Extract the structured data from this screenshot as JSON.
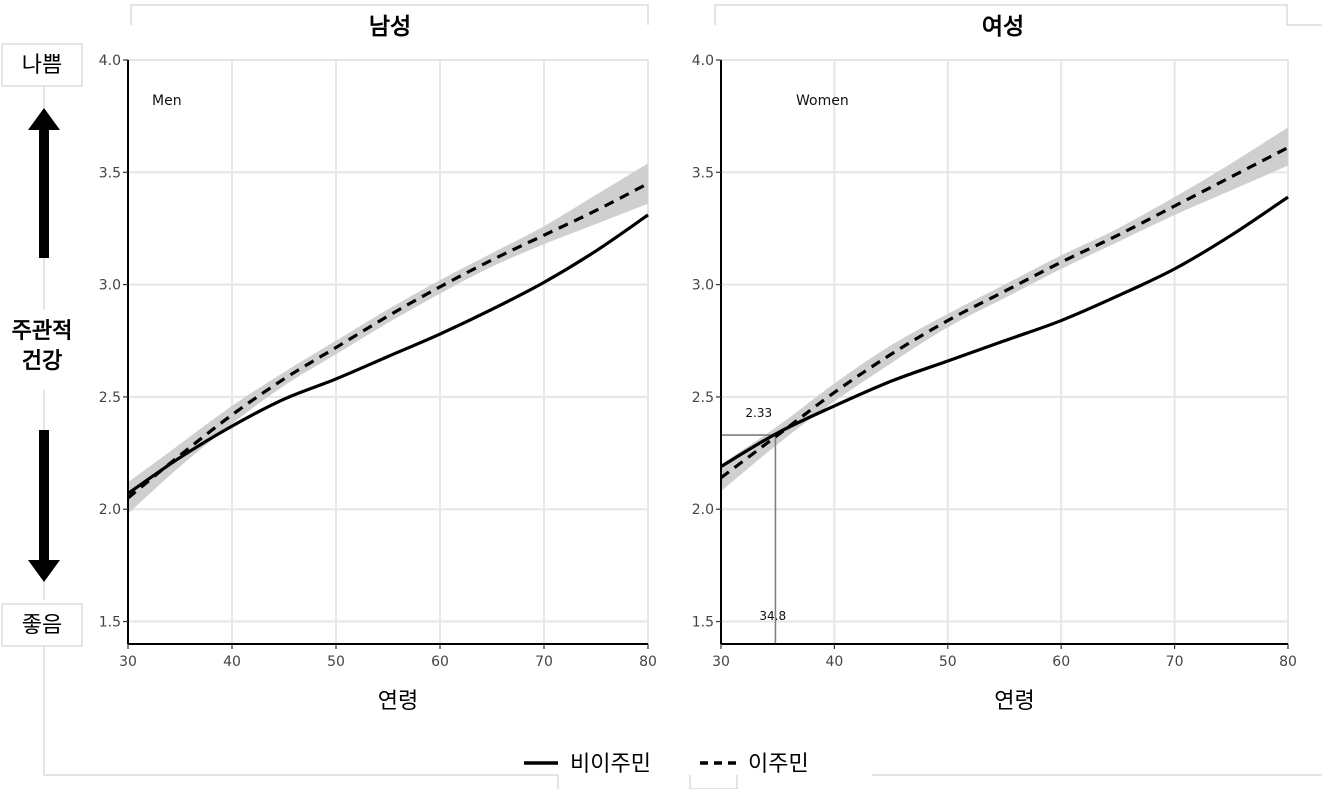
{
  "chart_data": [
    {
      "type": "line",
      "title": "남성",
      "panel_note": "Men",
      "xlabel": "연령",
      "ylabel": "",
      "xlim": [
        30,
        80
      ],
      "ylim": [
        1.4,
        4.0
      ],
      "xticks": [
        30,
        40,
        50,
        60,
        70,
        80
      ],
      "yticks": [
        1.5,
        2.0,
        2.5,
        3.0,
        3.5,
        4.0
      ],
      "x": [
        30,
        35,
        40,
        45,
        50,
        55,
        60,
        65,
        70,
        75,
        80
      ],
      "series": [
        {
          "name": "비이주민",
          "style": "solid",
          "values": [
            2.07,
            2.23,
            2.37,
            2.49,
            2.58,
            2.68,
            2.78,
            2.89,
            3.01,
            3.15,
            3.31
          ]
        },
        {
          "name": "이주민",
          "style": "dashed",
          "values": [
            2.05,
            2.24,
            2.42,
            2.58,
            2.72,
            2.86,
            2.99,
            3.11,
            3.22,
            3.33,
            3.45
          ],
          "ci_lower": [
            1.98,
            2.19,
            2.38,
            2.55,
            2.69,
            2.83,
            2.96,
            3.08,
            3.18,
            3.27,
            3.36
          ],
          "ci_upper": [
            2.12,
            2.29,
            2.46,
            2.61,
            2.75,
            2.89,
            3.02,
            3.14,
            3.26,
            3.4,
            3.54
          ]
        }
      ]
    },
    {
      "type": "line",
      "title": "여성",
      "panel_note": "Women",
      "xlabel": "연령",
      "ylabel": "",
      "xlim": [
        30,
        80
      ],
      "ylim": [
        1.4,
        4.0
      ],
      "xticks": [
        30,
        40,
        50,
        60,
        70,
        80
      ],
      "yticks": [
        1.5,
        2.0,
        2.5,
        3.0,
        3.5,
        4.0
      ],
      "x": [
        30,
        35,
        40,
        45,
        50,
        55,
        60,
        65,
        70,
        75,
        80
      ],
      "series": [
        {
          "name": "비이주민",
          "style": "solid",
          "values": [
            2.19,
            2.34,
            2.46,
            2.57,
            2.66,
            2.75,
            2.84,
            2.95,
            3.07,
            3.22,
            3.39
          ]
        },
        {
          "name": "이주민",
          "style": "dashed",
          "values": [
            2.14,
            2.33,
            2.52,
            2.69,
            2.84,
            2.97,
            3.1,
            3.22,
            3.35,
            3.48,
            3.61
          ],
          "ci_lower": [
            2.08,
            2.29,
            2.48,
            2.65,
            2.81,
            2.94,
            3.07,
            3.19,
            3.31,
            3.42,
            3.53
          ],
          "ci_upper": [
            2.2,
            2.37,
            2.56,
            2.73,
            2.87,
            3.0,
            3.13,
            3.25,
            3.39,
            3.54,
            3.7
          ]
        }
      ],
      "annotation": {
        "x": 34.8,
        "y": 2.33,
        "x_label": "34.8",
        "y_label": "2.33"
      }
    }
  ],
  "side_labels": {
    "top": "나쁨",
    "middle_1": "주관적",
    "middle_2": "건강",
    "bottom": "좋음"
  },
  "legend": {
    "solid_label": "비이주민",
    "dashed_label": "이주민"
  },
  "colors": {
    "line": "#000000",
    "ci_band": "#cfcfcf",
    "grid": "#e6e6e6",
    "annotation": "#7f7f7f"
  }
}
